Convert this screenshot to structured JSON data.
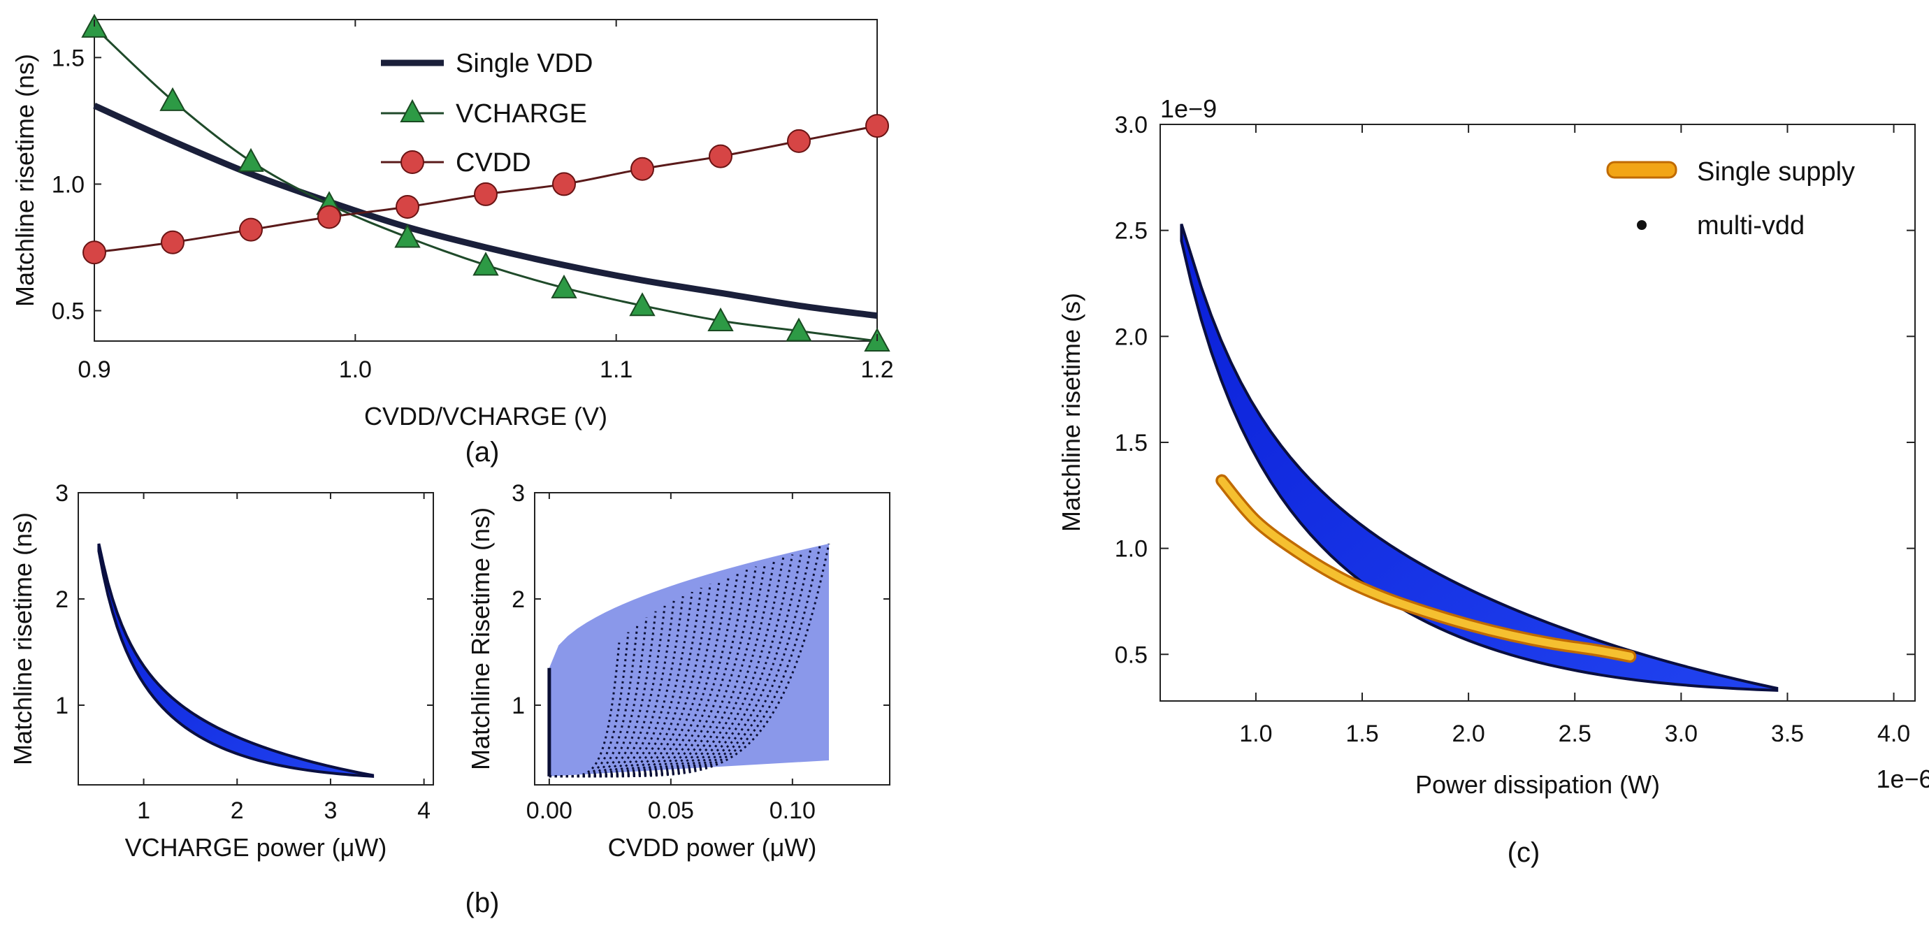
{
  "chart_data": [
    {
      "id": "a",
      "type": "line",
      "caption": "(a)",
      "title": "",
      "xlabel": "CVDD/VCHARGE (V)",
      "ylabel": "Matchline risetime (ns)",
      "xlim": [
        0.9,
        1.2
      ],
      "ylim": [
        0.38,
        1.65
      ],
      "xticks": [
        0.9,
        1.0,
        1.1,
        1.2
      ],
      "xtick_labels": [
        "0.9",
        "1.0",
        "1.1",
        "1.2"
      ],
      "yticks": [
        0.5,
        1.0,
        1.5
      ],
      "ytick_labels": [
        "0.5",
        "1.0",
        "1.5"
      ],
      "legend_position": "top-center",
      "x": [
        0.9,
        0.93,
        0.96,
        0.99,
        1.02,
        1.05,
        1.08,
        1.11,
        1.14,
        1.17,
        1.2
      ],
      "series": [
        {
          "name": "Single VDD",
          "marker": "none",
          "color": "#1a1f3a",
          "values": [
            1.31,
            1.17,
            1.04,
            0.93,
            0.83,
            0.75,
            0.68,
            0.62,
            0.57,
            0.52,
            0.48
          ]
        },
        {
          "name": "VCHARGE",
          "marker": "triangle",
          "color": "#2d8c3c",
          "values": [
            1.62,
            1.33,
            1.09,
            0.92,
            0.79,
            0.68,
            0.59,
            0.52,
            0.46,
            0.42,
            0.38
          ]
        },
        {
          "name": "CVDD",
          "marker": "circle",
          "color": "#d64545",
          "values": [
            0.73,
            0.77,
            0.82,
            0.87,
            0.91,
            0.96,
            1.0,
            1.06,
            1.11,
            1.17,
            1.23
          ]
        }
      ]
    },
    {
      "id": "b1",
      "type": "scatter",
      "caption": "(b)",
      "title": "",
      "xlabel": "VCHARGE power (μW)",
      "ylabel": "Matchline risetime (ns)",
      "xlim": [
        0.3,
        4.1
      ],
      "ylim": [
        0.25,
        3.0
      ],
      "xticks": [
        1,
        2,
        3,
        4
      ],
      "xtick_labels": [
        "1",
        "2",
        "3",
        "4"
      ],
      "yticks": [
        1,
        2,
        3
      ],
      "ytick_labels": [
        "1",
        "2",
        "3"
      ],
      "band": {
        "x_start": 0.52,
        "x_end": 3.45,
        "upper_start": 2.52,
        "lower_start": 2.45,
        "upper_end": 0.34,
        "lower_end": 0.33
      }
    },
    {
      "id": "b2",
      "type": "scatter",
      "title": "",
      "xlabel": "CVDD power (μW)",
      "ylabel": "Matchline Risetime (ns)",
      "xlim": [
        -0.006,
        0.14
      ],
      "ylim": [
        0.25,
        3.0
      ],
      "xticks": [
        0.0,
        0.05,
        0.1
      ],
      "xtick_labels": [
        "0.00",
        "0.05",
        "0.10"
      ],
      "yticks": [
        1,
        2,
        3
      ],
      "ytick_labels": [
        "1",
        "2",
        "3"
      ],
      "fan": {
        "lines": 24,
        "x_min": 0.0,
        "x_max": 0.115,
        "y_base": 0.33,
        "y_top_start": 1.35,
        "y_top_end": 2.52
      }
    },
    {
      "id": "c",
      "type": "scatter",
      "caption": "(c)",
      "title": "",
      "xlabel": "Power dissipation (W)",
      "ylabel": "Matchline risetime (s)",
      "x_exponent": "1e−6",
      "y_exponent": "1e−9",
      "xlim": [
        0.55,
        4.1
      ],
      "ylim": [
        0.28,
        3.0
      ],
      "xticks": [
        1.0,
        1.5,
        2.0,
        2.5,
        3.0,
        3.5,
        4.0
      ],
      "xtick_labels": [
        "1.0",
        "1.5",
        "2.0",
        "2.5",
        "3.0",
        "3.5",
        "4.0"
      ],
      "yticks": [
        0.5,
        1.0,
        1.5,
        2.0,
        2.5,
        3.0
      ],
      "ytick_labels": [
        "0.5",
        "1.0",
        "1.5",
        "2.0",
        "2.5",
        "3.0"
      ],
      "legend_position": "top-right",
      "series": [
        {
          "name": "Single supply",
          "color": "#f2a516",
          "x": [
            0.84,
            1.0,
            1.2,
            1.4,
            1.6,
            1.8,
            2.0,
            2.2,
            2.4,
            2.6,
            2.76
          ],
          "values": [
            1.32,
            1.13,
            0.98,
            0.86,
            0.77,
            0.7,
            0.64,
            0.59,
            0.55,
            0.52,
            0.49
          ]
        },
        {
          "name": "multi-vdd",
          "color": "#1030e0",
          "band": {
            "x_start": 0.65,
            "x_end": 3.45,
            "upper_start": 2.53,
            "lower_start": 2.45,
            "upper_end": 0.34,
            "lower_end": 0.33
          }
        }
      ]
    }
  ]
}
